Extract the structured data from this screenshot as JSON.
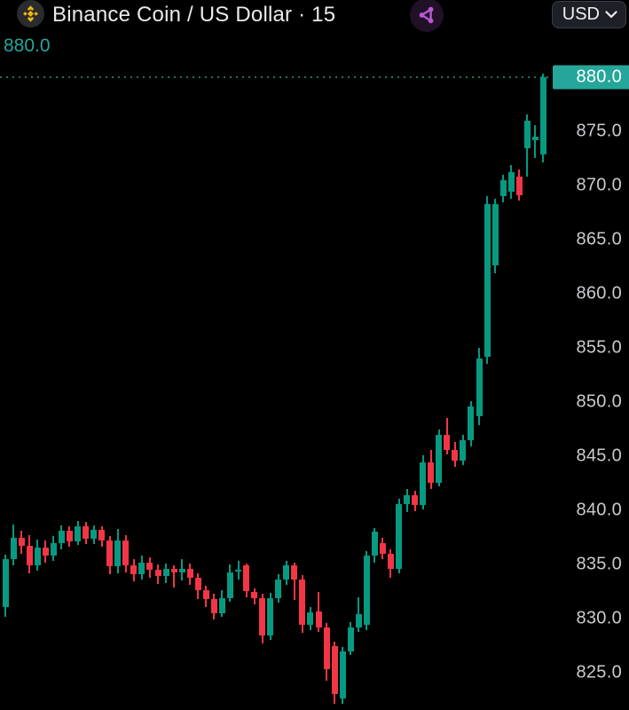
{
  "header": {
    "title": "Binance Coin / US Dollar · 15",
    "currency": "USD",
    "icons": [
      "binance-bnb-logo",
      "share-nodes-icon",
      "chevron-down-icon"
    ]
  },
  "price_display": {
    "last_price": "880.0"
  },
  "colors": {
    "background": "#000000",
    "up": "#089981",
    "down": "#f23645",
    "badge": "#26a69a",
    "last_price_text": "#26a69a",
    "axis_text": "#c9cbce",
    "title_text": "#e8eaed",
    "logo_gold": "#f0b90b",
    "share_purple": "#bb58d8",
    "price_line": "#1f8a74"
  },
  "chart_data": {
    "type": "candlestick",
    "title": "Binance Coin / US Dollar",
    "interval": "15",
    "legend_position": "none",
    "grid": false,
    "y_axis": {
      "side": "right",
      "min": 822,
      "max": 881,
      "current_price": 880.0,
      "current_price_label": "880.0",
      "ticks": [
        {
          "label": "875.0",
          "price": 875
        },
        {
          "label": "870.0",
          "price": 870
        },
        {
          "label": "865.0",
          "price": 865
        },
        {
          "label": "860.0",
          "price": 860
        },
        {
          "label": "855.0",
          "price": 855
        },
        {
          "label": "850.0",
          "price": 850
        },
        {
          "label": "845.0",
          "price": 845
        },
        {
          "label": "840.0",
          "price": 840
        },
        {
          "label": "835.0",
          "price": 835
        },
        {
          "label": "830.0",
          "price": 830
        },
        {
          "label": "825.0",
          "price": 825
        }
      ]
    },
    "candles_format": [
      "open",
      "high",
      "low",
      "close"
    ],
    "candles": [
      [
        831.1,
        835.9,
        830.2,
        835.5
      ],
      [
        835.5,
        838.7,
        834.9,
        837.5
      ],
      [
        837.5,
        838.1,
        836.0,
        836.7
      ],
      [
        836.7,
        837.7,
        834.2,
        834.9
      ],
      [
        834.9,
        837.3,
        834.4,
        836.6
      ],
      [
        836.6,
        837.2,
        835.2,
        835.8
      ],
      [
        835.8,
        837.6,
        835.3,
        837.0
      ],
      [
        837.0,
        838.6,
        836.4,
        838.1
      ],
      [
        838.1,
        838.5,
        836.6,
        837.1
      ],
      [
        837.1,
        839.0,
        836.8,
        838.5
      ],
      [
        838.5,
        838.9,
        836.9,
        837.4
      ],
      [
        837.4,
        838.6,
        836.9,
        838.2
      ],
      [
        838.2,
        838.5,
        836.6,
        837.2
      ],
      [
        837.2,
        837.6,
        834.1,
        834.8
      ],
      [
        834.8,
        838.3,
        834.2,
        837.2
      ],
      [
        837.2,
        837.7,
        834.3,
        834.9
      ],
      [
        834.9,
        835.5,
        833.4,
        834.1
      ],
      [
        834.1,
        835.8,
        833.6,
        835.2
      ],
      [
        835.2,
        835.7,
        833.8,
        834.5
      ],
      [
        834.5,
        835.0,
        833.2,
        833.9
      ],
      [
        833.9,
        835.1,
        833.3,
        834.6
      ],
      [
        834.6,
        834.9,
        832.9,
        834.3
      ],
      [
        834.3,
        835.5,
        833.5,
        834.6
      ],
      [
        834.6,
        835.1,
        833.1,
        833.8
      ],
      [
        833.8,
        834.2,
        831.8,
        832.6
      ],
      [
        832.6,
        833.0,
        831.1,
        831.8
      ],
      [
        831.8,
        832.3,
        829.9,
        830.5
      ],
      [
        830.5,
        832.6,
        830.2,
        831.9
      ],
      [
        831.9,
        835.0,
        831.6,
        834.3
      ],
      [
        834.3,
        835.3,
        833.6,
        834.5
      ],
      [
        834.9,
        835.1,
        832.0,
        832.5
      ],
      [
        832.5,
        832.8,
        831.3,
        831.9
      ],
      [
        831.9,
        832.3,
        827.7,
        828.4
      ],
      [
        828.4,
        832.4,
        828.0,
        831.9
      ],
      [
        831.9,
        834.1,
        831.5,
        833.6
      ],
      [
        833.6,
        835.3,
        833.1,
        834.9
      ],
      [
        834.9,
        835.2,
        831.7,
        833.6
      ],
      [
        833.6,
        834.0,
        828.7,
        829.4
      ],
      [
        829.4,
        831.1,
        828.9,
        830.6
      ],
      [
        830.7,
        832.5,
        828.8,
        829.2
      ],
      [
        829.2,
        829.6,
        824.3,
        825.3
      ],
      [
        827.5,
        827.9,
        822.1,
        823.0
      ],
      [
        822.6,
        827.4,
        822.1,
        827.0
      ],
      [
        827.0,
        829.7,
        826.6,
        829.2
      ],
      [
        829.2,
        832.0,
        828.8,
        830.4
      ],
      [
        829.4,
        836.2,
        828.9,
        835.8
      ],
      [
        835.8,
        838.4,
        835.2,
        838.0
      ],
      [
        837.0,
        837.5,
        835.5,
        836.0
      ],
      [
        836.0,
        836.4,
        833.8,
        834.6
      ],
      [
        834.6,
        841.1,
        834.2,
        840.6
      ],
      [
        840.6,
        842.0,
        839.8,
        841.4
      ],
      [
        841.4,
        841.8,
        839.9,
        840.5
      ],
      [
        840.5,
        845.1,
        840.1,
        844.4
      ],
      [
        844.4,
        845.6,
        842.0,
        842.5
      ],
      [
        842.5,
        847.5,
        842.2,
        847.0
      ],
      [
        847.0,
        848.5,
        845.2,
        845.6
      ],
      [
        845.6,
        846.3,
        844.0,
        844.6
      ],
      [
        844.6,
        847.0,
        844.2,
        846.5
      ],
      [
        846.5,
        850.1,
        845.9,
        849.6
      ],
      [
        848.7,
        855.0,
        847.9,
        854.0
      ],
      [
        854.2,
        869.0,
        853.5,
        868.3
      ],
      [
        862.6,
        868.8,
        861.9,
        868.3
      ],
      [
        869.0,
        871.0,
        868.4,
        870.5
      ],
      [
        869.4,
        871.9,
        868.8,
        871.2
      ],
      [
        870.8,
        871.5,
        868.6,
        869.1
      ],
      [
        873.4,
        876.6,
        870.8,
        876.0
      ],
      [
        874.2,
        875.6,
        872.5,
        874.5
      ],
      [
        872.9,
        880.3,
        872.1,
        880.0
      ]
    ]
  }
}
